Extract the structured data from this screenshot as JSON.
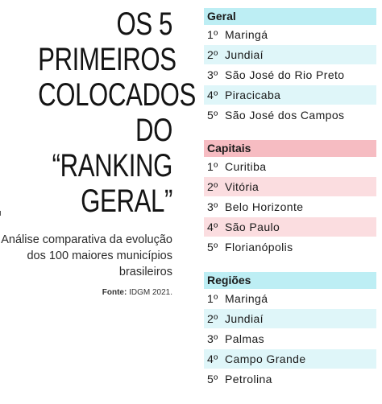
{
  "title_lines": [
    "OS 5 PRIMEIROS",
    "COLOCADOS",
    "DO “RANKING",
    "GERAL”"
  ],
  "subtitle": "Análise comparativa da evolução dos 100 maiores municípios brasileiros",
  "source_label": "Fonte:",
  "source_text": "IDGM 2021.",
  "colors": {
    "cyan": "#bdeef4",
    "cyan_light": "#dff6f9",
    "pink": "#f6bcc2",
    "pink_light": "#fbdde0"
  },
  "rankings": [
    {
      "header": "Geral",
      "items": [
        {
          "rank": "1º",
          "name": "Maringá"
        },
        {
          "rank": "2º",
          "name": "Jundiaí"
        },
        {
          "rank": "3º",
          "name": "São José do Rio Preto"
        },
        {
          "rank": "4º",
          "name": "Piracicaba"
        },
        {
          "rank": "5º",
          "name": "São José dos Campos"
        }
      ]
    },
    {
      "header": "Capitais",
      "items": [
        {
          "rank": "1º",
          "name": "Curitiba"
        },
        {
          "rank": "2º",
          "name": "Vitória"
        },
        {
          "rank": "3º",
          "name": "Belo Horizonte"
        },
        {
          "rank": "4º",
          "name": "São Paulo"
        },
        {
          "rank": "5º",
          "name": "Florianópolis"
        }
      ]
    },
    {
      "header": "Regiões",
      "items": [
        {
          "rank": "1º",
          "name": "Maringá"
        },
        {
          "rank": "2º",
          "name": "Jundiaí"
        },
        {
          "rank": "3º",
          "name": "Palmas"
        },
        {
          "rank": "4º",
          "name": "Campo Grande"
        },
        {
          "rank": "5º",
          "name": "Petrolina"
        }
      ]
    }
  ]
}
